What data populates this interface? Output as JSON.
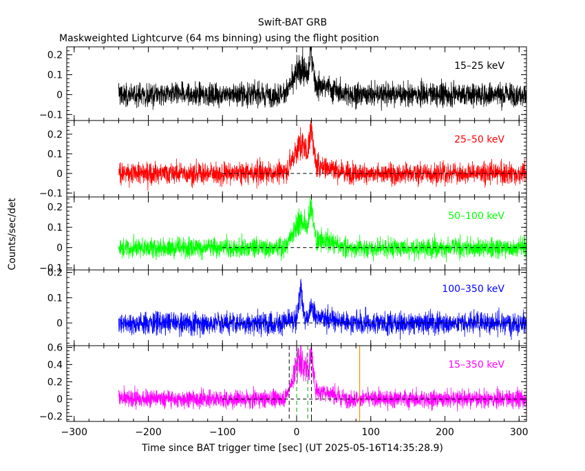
{
  "chart_data": {
    "type": "line",
    "title": "Swift-BAT GRB",
    "subtitle": "Maskweighted Lightcurve (64 ms binning) using the flight position",
    "xlabel": "Time since BAT trigger time [sec] (UT 2025-05-16T14:35:28.9)",
    "ylabel": "Counts/sec/det",
    "xlim": [
      -310,
      310
    ],
    "x_ticks": [
      -300,
      -200,
      -100,
      0,
      100,
      200,
      300
    ],
    "x_tick_labels": [
      "−300",
      "−200",
      "−100",
      "0",
      "100",
      "200",
      "300"
    ],
    "data_start": -240,
    "reference_lines": {
      "black_dashed": [
        -10,
        20
      ],
      "green_dashed": [
        0,
        15
      ],
      "orange_solid": [
        85
      ]
    },
    "panels": [
      {
        "name": "15–25 keV",
        "color": "#000000",
        "ylim": [
          -0.13,
          0.24
        ],
        "y_ticks": [
          -0.1,
          0,
          0.1,
          0.2
        ],
        "y_tick_labels": [
          "−0.1",
          "0",
          "0.1",
          "0.2"
        ],
        "noise": 0.042,
        "peaks": [
          {
            "t": 5,
            "h": 0.12,
            "w": 9
          },
          {
            "t": 20,
            "h": 0.16,
            "w": 2.5
          },
          {
            "t": 35,
            "h": 0.04,
            "w": 15
          }
        ],
        "zero_line": false
      },
      {
        "name": "25–50 keV",
        "color": "#ff0000",
        "ylim": [
          -0.12,
          0.27
        ],
        "y_ticks": [
          -0.1,
          0,
          0.1,
          0.2
        ],
        "y_tick_labels": [
          "−0.1",
          "0",
          "0.1",
          "0.2"
        ],
        "noise": 0.04,
        "peaks": [
          {
            "t": 5,
            "h": 0.14,
            "w": 9
          },
          {
            "t": 20,
            "h": 0.18,
            "w": 2.5
          },
          {
            "t": 35,
            "h": 0.04,
            "w": 15
          }
        ],
        "zero_line": true
      },
      {
        "name": "50–100 keV",
        "color": "#00ff00",
        "ylim": [
          -0.11,
          0.25
        ],
        "y_ticks": [
          -0.1,
          0,
          0.1,
          0.2
        ],
        "y_tick_labels": [
          "−0.1",
          "0",
          "0.1",
          "0.2"
        ],
        "noise": 0.036,
        "peaks": [
          {
            "t": 5,
            "h": 0.13,
            "w": 9
          },
          {
            "t": 20,
            "h": 0.16,
            "w": 2.5
          },
          {
            "t": 35,
            "h": 0.03,
            "w": 15
          }
        ],
        "zero_line": true
      },
      {
        "name": "100–350 keV",
        "color": "#0000ff",
        "ylim": [
          -0.09,
          0.21
        ],
        "y_ticks": [
          0,
          0.1,
          0.2
        ],
        "y_tick_labels": [
          "0",
          "0.1",
          "0.2"
        ],
        "noise": 0.032,
        "peaks": [
          {
            "t": 5,
            "h": 0.12,
            "w": 3
          },
          {
            "t": 20,
            "h": 0.06,
            "w": 3
          },
          {
            "t": 35,
            "h": 0.02,
            "w": 15
          }
        ],
        "zero_line": true
      },
      {
        "name": "15–350 keV",
        "color": "#ff00ff",
        "ylim": [
          -0.26,
          0.62
        ],
        "y_ticks": [
          -0.2,
          0,
          0.2,
          0.4,
          0.6
        ],
        "y_tick_labels": [
          "−0.2",
          "0",
          "0.2",
          "0.4",
          "0.6"
        ],
        "noise": 0.075,
        "peaks": [
          {
            "t": 5,
            "h": 0.45,
            "w": 9
          },
          {
            "t": 20,
            "h": 0.35,
            "w": 2.5
          },
          {
            "t": 35,
            "h": 0.08,
            "w": 15
          }
        ],
        "zero_line": true
      }
    ]
  }
}
